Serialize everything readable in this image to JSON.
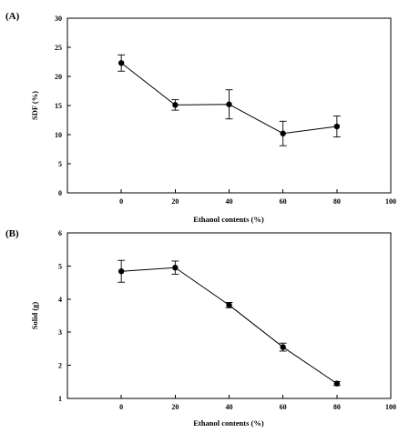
{
  "chart_data": [
    {
      "type": "line",
      "panel_label": "(A)",
      "xlabel": "Ethanol contents (%)",
      "ylabel": "SDF (%)",
      "xlim": [
        -20,
        100
      ],
      "ylim": [
        0,
        30
      ],
      "xticks": [
        0,
        20,
        40,
        60,
        80,
        100
      ],
      "yticks": [
        0,
        5,
        10,
        15,
        20,
        25,
        30
      ],
      "grid": false,
      "color": "#000000",
      "x": [
        0,
        20,
        40,
        60,
        80
      ],
      "y": [
        22.3,
        15.1,
        15.2,
        10.2,
        11.4
      ],
      "yerr": [
        1.4,
        0.9,
        2.5,
        2.1,
        1.8
      ]
    },
    {
      "type": "line",
      "panel_label": "(B)",
      "xlabel": "Ethanol contents (%)",
      "ylabel": "Solid (g)",
      "xlim": [
        -20,
        100
      ],
      "ylim": [
        1,
        6
      ],
      "xticks": [
        0,
        20,
        40,
        60,
        80,
        100
      ],
      "yticks": [
        1,
        2,
        3,
        4,
        5,
        6
      ],
      "grid": false,
      "color": "#000000",
      "x": [
        0,
        20,
        40,
        60,
        80
      ],
      "y": [
        4.84,
        4.95,
        3.82,
        2.55,
        1.45
      ],
      "yerr": [
        0.33,
        0.2,
        0.08,
        0.12,
        0.06
      ]
    }
  ]
}
